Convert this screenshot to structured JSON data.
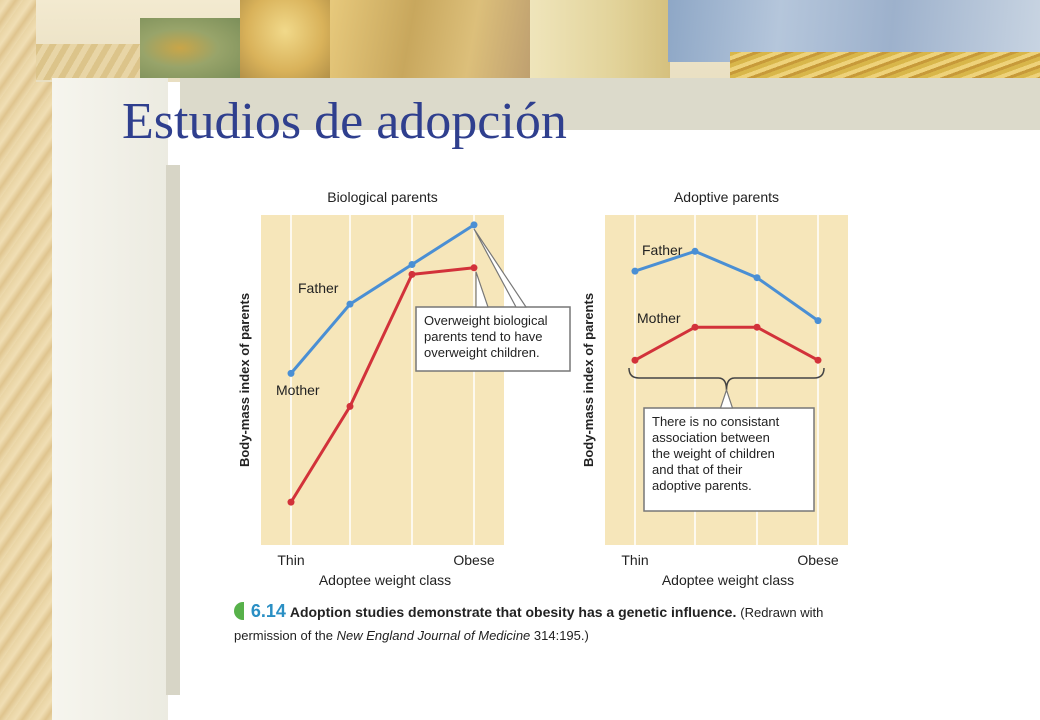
{
  "slide": {
    "title": "Estudios de adopción"
  },
  "caption": {
    "number": "6.14",
    "bold_text": "Adoption studies demonstrate that obesity has a genetic influence.",
    "note_prefix": "(Redrawn with permission of the ",
    "note_journal": "New England Journal of Medicine",
    "note_suffix": " 314:195.)"
  },
  "colors": {
    "father": "#4a8fd4",
    "mother": "#d2323a",
    "plot_background": "#f6e6ba",
    "title": "#2f3f8e"
  },
  "chart_data": [
    {
      "type": "line",
      "title": "Biological parents",
      "xlabel": "Adoptee weight class",
      "ylabel": "Body-mass index of parents",
      "x_tick_labels": [
        "Thin",
        "Obese"
      ],
      "categories": [
        1,
        2,
        3,
        4
      ],
      "ylim": [
        0,
        100
      ],
      "grid": "vertical",
      "series": [
        {
          "name": "Father",
          "values": [
            52,
            73,
            85,
            97
          ]
        },
        {
          "name": "Mother",
          "values": [
            13,
            42,
            82,
            84
          ]
        }
      ],
      "annotation": "Overweight biological parents tend to have overweight children."
    },
    {
      "type": "line",
      "title": "Adoptive parents",
      "xlabel": "Adoptee weight class",
      "ylabel": "Body-mass index of parents",
      "x_tick_labels": [
        "Thin",
        "Obese"
      ],
      "categories": [
        1,
        2,
        3,
        4
      ],
      "ylim": [
        0,
        100
      ],
      "grid": "vertical",
      "series": [
        {
          "name": "Father",
          "values": [
            83,
            89,
            81,
            68
          ]
        },
        {
          "name": "Mother",
          "values": [
            56,
            66,
            66,
            56
          ]
        }
      ],
      "annotation": "There is no consistant association between the weight of children and that of their adoptive parents."
    }
  ]
}
